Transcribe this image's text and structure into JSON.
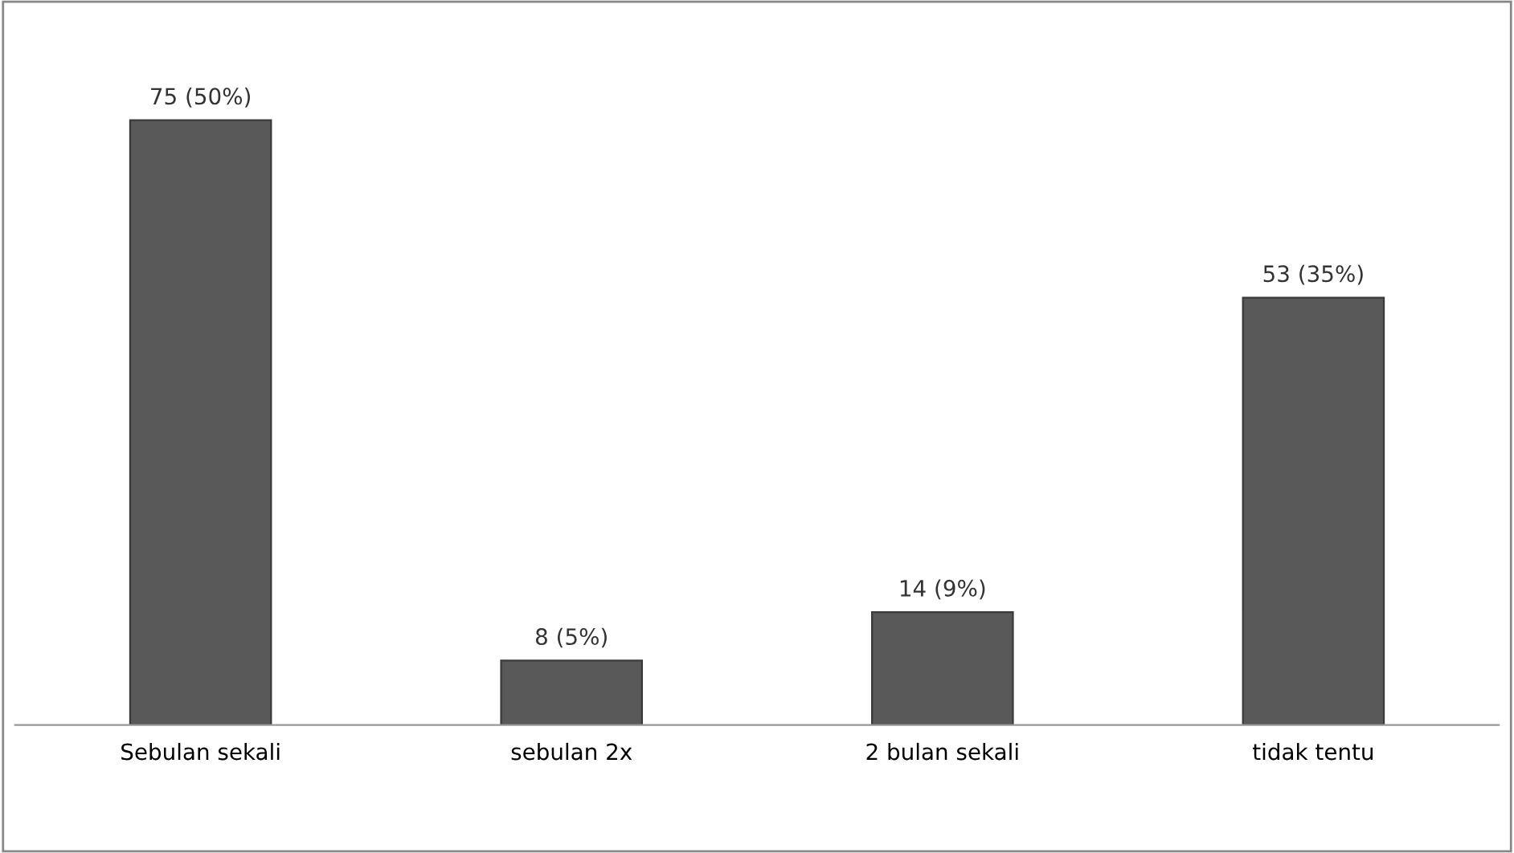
{
  "chart_data": {
    "type": "bar",
    "categories": [
      "Sebulan sekali",
      "sebulan 2x",
      "2 bulan sekali",
      "tidak tentu"
    ],
    "values": [
      75,
      8,
      14,
      53
    ],
    "value_labels": [
      "75 (50%)",
      "8 (5%)",
      "14 (9%)",
      "53 (35%)"
    ],
    "color": "#595959",
    "grid": false,
    "legend": false
  }
}
